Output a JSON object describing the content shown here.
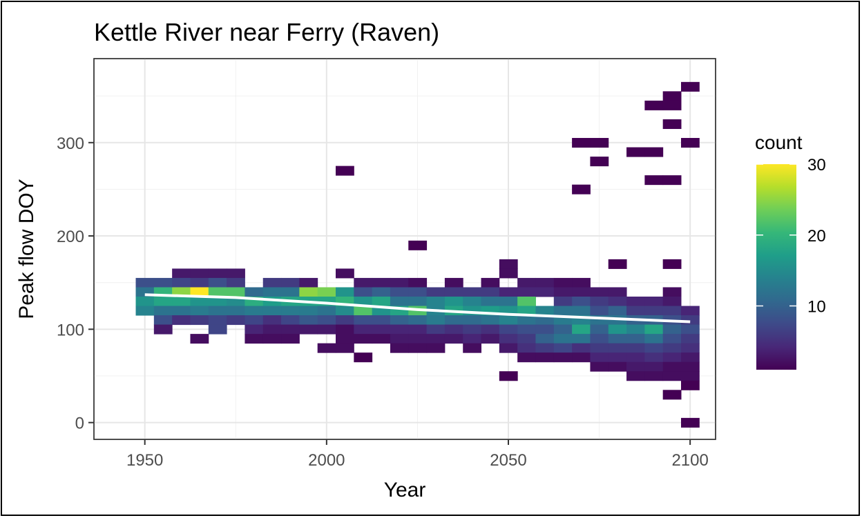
{
  "chart_data": {
    "type": "heatmap",
    "title": "Kettle River near Ferry (Raven)",
    "xlabel": "Year",
    "ylabel": "Peak flow DOY",
    "xlim": [
      1936,
      2107
    ],
    "ylim": [
      -18,
      390
    ],
    "x_ticks": [
      1950,
      2000,
      2050,
      2100
    ],
    "y_ticks": [
      0,
      100,
      200,
      300
    ],
    "bin_width_x": 5,
    "bin_width_y": 10,
    "grid": true,
    "legend": {
      "title": "count",
      "position": "right",
      "min": 1,
      "max": 30,
      "ticks": [
        10,
        20,
        30
      ]
    },
    "colormap": [
      "#440154",
      "#482878",
      "#3e4a89",
      "#31688e",
      "#26828e",
      "#1f9e89",
      "#35b779",
      "#6ece58",
      "#b5de2b",
      "#fde725"
    ],
    "cells": [
      {
        "x": 1950,
        "y": 150,
        "count": 8
      },
      {
        "x": 1950,
        "y": 140,
        "count": 12
      },
      {
        "x": 1950,
        "y": 130,
        "count": 16
      },
      {
        "x": 1950,
        "y": 120,
        "count": 14
      },
      {
        "x": 1955,
        "y": 150,
        "count": 8
      },
      {
        "x": 1955,
        "y": 140,
        "count": 20
      },
      {
        "x": 1955,
        "y": 130,
        "count": 18
      },
      {
        "x": 1955,
        "y": 120,
        "count": 12
      },
      {
        "x": 1955,
        "y": 110,
        "count": 8
      },
      {
        "x": 1955,
        "y": 100,
        "count": 3
      },
      {
        "x": 1960,
        "y": 160,
        "count": 3
      },
      {
        "x": 1960,
        "y": 150,
        "count": 7
      },
      {
        "x": 1960,
        "y": 140,
        "count": 25
      },
      {
        "x": 1960,
        "y": 130,
        "count": 18
      },
      {
        "x": 1960,
        "y": 120,
        "count": 12
      },
      {
        "x": 1960,
        "y": 110,
        "count": 5
      },
      {
        "x": 1965,
        "y": 160,
        "count": 3
      },
      {
        "x": 1965,
        "y": 150,
        "count": 6
      },
      {
        "x": 1965,
        "y": 140,
        "count": 30
      },
      {
        "x": 1965,
        "y": 130,
        "count": 16
      },
      {
        "x": 1965,
        "y": 120,
        "count": 13
      },
      {
        "x": 1965,
        "y": 110,
        "count": 6
      },
      {
        "x": 1965,
        "y": 90,
        "count": 2
      },
      {
        "x": 1970,
        "y": 160,
        "count": 3
      },
      {
        "x": 1970,
        "y": 150,
        "count": 8
      },
      {
        "x": 1970,
        "y": 140,
        "count": 22
      },
      {
        "x": 1970,
        "y": 130,
        "count": 16
      },
      {
        "x": 1970,
        "y": 120,
        "count": 12
      },
      {
        "x": 1970,
        "y": 110,
        "count": 7
      },
      {
        "x": 1970,
        "y": 100,
        "count": 7
      },
      {
        "x": 1975,
        "y": 160,
        "count": 3
      },
      {
        "x": 1975,
        "y": 150,
        "count": 6
      },
      {
        "x": 1975,
        "y": 140,
        "count": 22
      },
      {
        "x": 1975,
        "y": 130,
        "count": 15
      },
      {
        "x": 1975,
        "y": 120,
        "count": 12
      },
      {
        "x": 1975,
        "y": 110,
        "count": 6
      },
      {
        "x": 1980,
        "y": 140,
        "count": 11
      },
      {
        "x": 1980,
        "y": 130,
        "count": 19
      },
      {
        "x": 1980,
        "y": 120,
        "count": 13
      },
      {
        "x": 1980,
        "y": 110,
        "count": 7
      },
      {
        "x": 1980,
        "y": 100,
        "count": 4
      },
      {
        "x": 1980,
        "y": 90,
        "count": 2
      },
      {
        "x": 1985,
        "y": 150,
        "count": 6
      },
      {
        "x": 1985,
        "y": 140,
        "count": 12
      },
      {
        "x": 1985,
        "y": 130,
        "count": 17
      },
      {
        "x": 1985,
        "y": 120,
        "count": 13
      },
      {
        "x": 1985,
        "y": 110,
        "count": 5
      },
      {
        "x": 1985,
        "y": 100,
        "count": 3
      },
      {
        "x": 1985,
        "y": 90,
        "count": 2
      },
      {
        "x": 1990,
        "y": 150,
        "count": 6
      },
      {
        "x": 1990,
        "y": 140,
        "count": 12
      },
      {
        "x": 1990,
        "y": 130,
        "count": 18
      },
      {
        "x": 1990,
        "y": 120,
        "count": 13
      },
      {
        "x": 1990,
        "y": 110,
        "count": 7
      },
      {
        "x": 1990,
        "y": 100,
        "count": 3
      },
      {
        "x": 1990,
        "y": 90,
        "count": 2
      },
      {
        "x": 1995,
        "y": 150,
        "count": 3
      },
      {
        "x": 1995,
        "y": 140,
        "count": 25
      },
      {
        "x": 1995,
        "y": 130,
        "count": 18
      },
      {
        "x": 1995,
        "y": 120,
        "count": 13
      },
      {
        "x": 1995,
        "y": 110,
        "count": 9
      },
      {
        "x": 1995,
        "y": 100,
        "count": 3
      },
      {
        "x": 2000,
        "y": 140,
        "count": 24
      },
      {
        "x": 2000,
        "y": 130,
        "count": 18
      },
      {
        "x": 2000,
        "y": 120,
        "count": 12
      },
      {
        "x": 2000,
        "y": 110,
        "count": 8
      },
      {
        "x": 2000,
        "y": 100,
        "count": 3
      },
      {
        "x": 2000,
        "y": 80,
        "count": 2
      },
      {
        "x": 2005,
        "y": 270,
        "count": 1
      },
      {
        "x": 2005,
        "y": 160,
        "count": 2
      },
      {
        "x": 2005,
        "y": 140,
        "count": 16
      },
      {
        "x": 2005,
        "y": 130,
        "count": 20
      },
      {
        "x": 2005,
        "y": 120,
        "count": 15
      },
      {
        "x": 2005,
        "y": 110,
        "count": 6
      },
      {
        "x": 2005,
        "y": 100,
        "count": 2
      },
      {
        "x": 2005,
        "y": 90,
        "count": 2
      },
      {
        "x": 2005,
        "y": 80,
        "count": 2
      },
      {
        "x": 2010,
        "y": 150,
        "count": 3
      },
      {
        "x": 2010,
        "y": 140,
        "count": 8
      },
      {
        "x": 2010,
        "y": 130,
        "count": 16
      },
      {
        "x": 2010,
        "y": 120,
        "count": 22
      },
      {
        "x": 2010,
        "y": 110,
        "count": 8
      },
      {
        "x": 2010,
        "y": 100,
        "count": 4
      },
      {
        "x": 2010,
        "y": 90,
        "count": 2
      },
      {
        "x": 2010,
        "y": 70,
        "count": 1
      },
      {
        "x": 2015,
        "y": 150,
        "count": 3
      },
      {
        "x": 2015,
        "y": 140,
        "count": 10
      },
      {
        "x": 2015,
        "y": 130,
        "count": 18
      },
      {
        "x": 2015,
        "y": 120,
        "count": 16
      },
      {
        "x": 2015,
        "y": 110,
        "count": 8
      },
      {
        "x": 2015,
        "y": 100,
        "count": 4
      },
      {
        "x": 2015,
        "y": 90,
        "count": 2
      },
      {
        "x": 2020,
        "y": 150,
        "count": 3
      },
      {
        "x": 2020,
        "y": 140,
        "count": 8
      },
      {
        "x": 2020,
        "y": 130,
        "count": 12
      },
      {
        "x": 2020,
        "y": 120,
        "count": 18
      },
      {
        "x": 2020,
        "y": 110,
        "count": 10
      },
      {
        "x": 2020,
        "y": 100,
        "count": 4
      },
      {
        "x": 2020,
        "y": 90,
        "count": 3
      },
      {
        "x": 2020,
        "y": 80,
        "count": 2
      },
      {
        "x": 2025,
        "y": 190,
        "count": 1
      },
      {
        "x": 2025,
        "y": 150,
        "count": 2
      },
      {
        "x": 2025,
        "y": 140,
        "count": 8
      },
      {
        "x": 2025,
        "y": 130,
        "count": 12
      },
      {
        "x": 2025,
        "y": 120,
        "count": 22
      },
      {
        "x": 2025,
        "y": 110,
        "count": 11
      },
      {
        "x": 2025,
        "y": 100,
        "count": 4
      },
      {
        "x": 2025,
        "y": 90,
        "count": 3
      },
      {
        "x": 2025,
        "y": 80,
        "count": 2
      },
      {
        "x": 2030,
        "y": 140,
        "count": 6
      },
      {
        "x": 2030,
        "y": 130,
        "count": 14
      },
      {
        "x": 2030,
        "y": 120,
        "count": 14
      },
      {
        "x": 2030,
        "y": 110,
        "count": 13
      },
      {
        "x": 2030,
        "y": 100,
        "count": 6
      },
      {
        "x": 2030,
        "y": 90,
        "count": 3
      },
      {
        "x": 2030,
        "y": 80,
        "count": 2
      },
      {
        "x": 2035,
        "y": 150,
        "count": 2
      },
      {
        "x": 2035,
        "y": 140,
        "count": 6
      },
      {
        "x": 2035,
        "y": 130,
        "count": 16
      },
      {
        "x": 2035,
        "y": 120,
        "count": 18
      },
      {
        "x": 2035,
        "y": 110,
        "count": 11
      },
      {
        "x": 2035,
        "y": 100,
        "count": 5
      },
      {
        "x": 2035,
        "y": 90,
        "count": 3
      },
      {
        "x": 2040,
        "y": 140,
        "count": 6
      },
      {
        "x": 2040,
        "y": 130,
        "count": 14
      },
      {
        "x": 2040,
        "y": 120,
        "count": 16
      },
      {
        "x": 2040,
        "y": 110,
        "count": 11
      },
      {
        "x": 2040,
        "y": 100,
        "count": 6
      },
      {
        "x": 2040,
        "y": 90,
        "count": 4
      },
      {
        "x": 2040,
        "y": 80,
        "count": 2
      },
      {
        "x": 2045,
        "y": 150,
        "count": 2
      },
      {
        "x": 2045,
        "y": 140,
        "count": 6
      },
      {
        "x": 2045,
        "y": 130,
        "count": 12
      },
      {
        "x": 2045,
        "y": 120,
        "count": 17
      },
      {
        "x": 2045,
        "y": 110,
        "count": 12
      },
      {
        "x": 2045,
        "y": 100,
        "count": 5
      },
      {
        "x": 2045,
        "y": 90,
        "count": 3
      },
      {
        "x": 2050,
        "y": 170,
        "count": 2
      },
      {
        "x": 2050,
        "y": 160,
        "count": 2
      },
      {
        "x": 2050,
        "y": 140,
        "count": 4
      },
      {
        "x": 2050,
        "y": 130,
        "count": 12
      },
      {
        "x": 2050,
        "y": 120,
        "count": 16
      },
      {
        "x": 2050,
        "y": 110,
        "count": 14
      },
      {
        "x": 2050,
        "y": 100,
        "count": 7
      },
      {
        "x": 2050,
        "y": 90,
        "count": 5
      },
      {
        "x": 2050,
        "y": 80,
        "count": 3
      },
      {
        "x": 2050,
        "y": 50,
        "count": 1
      },
      {
        "x": 2055,
        "y": 150,
        "count": 3
      },
      {
        "x": 2055,
        "y": 140,
        "count": 4
      },
      {
        "x": 2055,
        "y": 130,
        "count": 22
      },
      {
        "x": 2055,
        "y": 120,
        "count": 18
      },
      {
        "x": 2055,
        "y": 110,
        "count": 12
      },
      {
        "x": 2055,
        "y": 100,
        "count": 8
      },
      {
        "x": 2055,
        "y": 90,
        "count": 6
      },
      {
        "x": 2055,
        "y": 80,
        "count": 5
      },
      {
        "x": 2055,
        "y": 70,
        "count": 2
      },
      {
        "x": 2060,
        "y": 150,
        "count": 3
      },
      {
        "x": 2060,
        "y": 140,
        "count": 4
      },
      {
        "x": 2060,
        "y": 120,
        "count": 14
      },
      {
        "x": 2060,
        "y": 110,
        "count": 11
      },
      {
        "x": 2060,
        "y": 100,
        "count": 8
      },
      {
        "x": 2060,
        "y": 90,
        "count": 10
      },
      {
        "x": 2060,
        "y": 80,
        "count": 6
      },
      {
        "x": 2060,
        "y": 70,
        "count": 2
      },
      {
        "x": 2065,
        "y": 150,
        "count": 2
      },
      {
        "x": 2065,
        "y": 140,
        "count": 3
      },
      {
        "x": 2065,
        "y": 130,
        "count": 6
      },
      {
        "x": 2065,
        "y": 120,
        "count": 12
      },
      {
        "x": 2065,
        "y": 110,
        "count": 13
      },
      {
        "x": 2065,
        "y": 100,
        "count": 10
      },
      {
        "x": 2065,
        "y": 90,
        "count": 12
      },
      {
        "x": 2065,
        "y": 80,
        "count": 7
      },
      {
        "x": 2065,
        "y": 70,
        "count": 2
      },
      {
        "x": 2070,
        "y": 300,
        "count": 1
      },
      {
        "x": 2070,
        "y": 250,
        "count": 1
      },
      {
        "x": 2070,
        "y": 150,
        "count": 2
      },
      {
        "x": 2070,
        "y": 140,
        "count": 3
      },
      {
        "x": 2070,
        "y": 130,
        "count": 8
      },
      {
        "x": 2070,
        "y": 120,
        "count": 12
      },
      {
        "x": 2070,
        "y": 110,
        "count": 14
      },
      {
        "x": 2070,
        "y": 100,
        "count": 18
      },
      {
        "x": 2070,
        "y": 90,
        "count": 12
      },
      {
        "x": 2070,
        "y": 80,
        "count": 5
      },
      {
        "x": 2070,
        "y": 70,
        "count": 2
      },
      {
        "x": 2075,
        "y": 300,
        "count": 1
      },
      {
        "x": 2075,
        "y": 280,
        "count": 1
      },
      {
        "x": 2075,
        "y": 140,
        "count": 3
      },
      {
        "x": 2075,
        "y": 130,
        "count": 6
      },
      {
        "x": 2075,
        "y": 120,
        "count": 8
      },
      {
        "x": 2075,
        "y": 110,
        "count": 12
      },
      {
        "x": 2075,
        "y": 100,
        "count": 10
      },
      {
        "x": 2075,
        "y": 90,
        "count": 8
      },
      {
        "x": 2075,
        "y": 80,
        "count": 6
      },
      {
        "x": 2075,
        "y": 70,
        "count": 4
      },
      {
        "x": 2075,
        "y": 60,
        "count": 2
      },
      {
        "x": 2080,
        "y": 170,
        "count": 1
      },
      {
        "x": 2080,
        "y": 140,
        "count": 3
      },
      {
        "x": 2080,
        "y": 130,
        "count": 5
      },
      {
        "x": 2080,
        "y": 120,
        "count": 10
      },
      {
        "x": 2080,
        "y": 110,
        "count": 12
      },
      {
        "x": 2080,
        "y": 100,
        "count": 16
      },
      {
        "x": 2080,
        "y": 90,
        "count": 10
      },
      {
        "x": 2080,
        "y": 80,
        "count": 6
      },
      {
        "x": 2080,
        "y": 70,
        "count": 4
      },
      {
        "x": 2080,
        "y": 60,
        "count": 2
      },
      {
        "x": 2085,
        "y": 290,
        "count": 1
      },
      {
        "x": 2085,
        "y": 130,
        "count": 4
      },
      {
        "x": 2085,
        "y": 120,
        "count": 6
      },
      {
        "x": 2085,
        "y": 110,
        "count": 10
      },
      {
        "x": 2085,
        "y": 100,
        "count": 14
      },
      {
        "x": 2085,
        "y": 90,
        "count": 10
      },
      {
        "x": 2085,
        "y": 80,
        "count": 6
      },
      {
        "x": 2085,
        "y": 70,
        "count": 4
      },
      {
        "x": 2085,
        "y": 60,
        "count": 3
      },
      {
        "x": 2085,
        "y": 50,
        "count": 2
      },
      {
        "x": 2090,
        "y": 340,
        "count": 1
      },
      {
        "x": 2090,
        "y": 290,
        "count": 1
      },
      {
        "x": 2090,
        "y": 260,
        "count": 1
      },
      {
        "x": 2090,
        "y": 130,
        "count": 4
      },
      {
        "x": 2090,
        "y": 120,
        "count": 6
      },
      {
        "x": 2090,
        "y": 110,
        "count": 10
      },
      {
        "x": 2090,
        "y": 100,
        "count": 18
      },
      {
        "x": 2090,
        "y": 90,
        "count": 12
      },
      {
        "x": 2090,
        "y": 80,
        "count": 7
      },
      {
        "x": 2090,
        "y": 70,
        "count": 5
      },
      {
        "x": 2090,
        "y": 60,
        "count": 3
      },
      {
        "x": 2090,
        "y": 50,
        "count": 2
      },
      {
        "x": 2095,
        "y": 350,
        "count": 1
      },
      {
        "x": 2095,
        "y": 340,
        "count": 1
      },
      {
        "x": 2095,
        "y": 320,
        "count": 1
      },
      {
        "x": 2095,
        "y": 260,
        "count": 1
      },
      {
        "x": 2095,
        "y": 170,
        "count": 1
      },
      {
        "x": 2095,
        "y": 140,
        "count": 2
      },
      {
        "x": 2095,
        "y": 130,
        "count": 3
      },
      {
        "x": 2095,
        "y": 120,
        "count": 6
      },
      {
        "x": 2095,
        "y": 110,
        "count": 8
      },
      {
        "x": 2095,
        "y": 100,
        "count": 10
      },
      {
        "x": 2095,
        "y": 90,
        "count": 8
      },
      {
        "x": 2095,
        "y": 80,
        "count": 6
      },
      {
        "x": 2095,
        "y": 70,
        "count": 4
      },
      {
        "x": 2095,
        "y": 60,
        "count": 2
      },
      {
        "x": 2095,
        "y": 50,
        "count": 2
      },
      {
        "x": 2095,
        "y": 30,
        "count": 1
      },
      {
        "x": 2100,
        "y": 360,
        "count": 1
      },
      {
        "x": 2100,
        "y": 300,
        "count": 1
      },
      {
        "x": 2100,
        "y": 120,
        "count": 4
      },
      {
        "x": 2100,
        "y": 110,
        "count": 6
      },
      {
        "x": 2100,
        "y": 100,
        "count": 8
      },
      {
        "x": 2100,
        "y": 90,
        "count": 6
      },
      {
        "x": 2100,
        "y": 80,
        "count": 5
      },
      {
        "x": 2100,
        "y": 70,
        "count": 3
      },
      {
        "x": 2100,
        "y": 60,
        "count": 2
      },
      {
        "x": 2100,
        "y": 50,
        "count": 2
      },
      {
        "x": 2100,
        "y": 40,
        "count": 1
      },
      {
        "x": 2100,
        "y": 0,
        "count": 1
      }
    ],
    "trend_line": {
      "color": "#ffffff",
      "x": [
        1950,
        1975,
        2000,
        2025,
        2050,
        2075,
        2100
      ],
      "y": [
        137,
        134,
        128,
        121,
        116,
        112,
        108
      ]
    }
  }
}
